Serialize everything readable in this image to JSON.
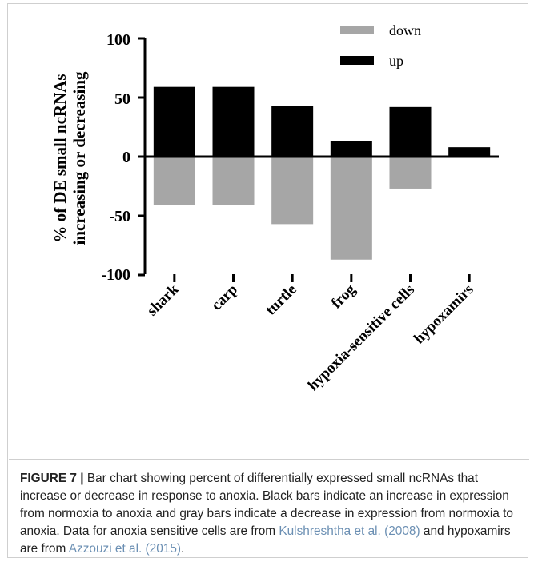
{
  "chart_data": {
    "type": "bar",
    "categories": [
      "shark",
      "carp",
      "turtle",
      "frog",
      "hypoxia-sensitive cells",
      "hypoxamirs"
    ],
    "series": [
      {
        "name": "up",
        "values": [
          59,
          59,
          43,
          13,
          42,
          8
        ],
        "color": "#000000"
      },
      {
        "name": "down",
        "values": [
          -41,
          -41,
          -57,
          -87,
          -27,
          0
        ],
        "color": "#a6a6a6"
      }
    ],
    "ylabel_line1": "% of DE small ncRNAs",
    "ylabel_line2": "increasing or decreasing",
    "yticks": [
      "100",
      "50",
      "0",
      "-50",
      "-100"
    ],
    "ylim": [
      -100,
      100
    ],
    "legend_position": "top-right"
  },
  "caption": {
    "label": "FIGURE 7 |",
    "text_part1": " Bar chart showing percent of differentially expressed small ncRNAs that increase or decrease in response to anoxia. Black bars indicate an increase in expression from normoxia to anoxia and gray bars indicate a decrease in expression from normoxia to anoxia. Data for anoxia sensitive cells are from ",
    "ref1": "Kulshreshtha et al. (2008)",
    "text_part2": " and hypoxamirs are from ",
    "ref2": "Azzouzi et al. (2015)",
    "text_part3": "."
  }
}
